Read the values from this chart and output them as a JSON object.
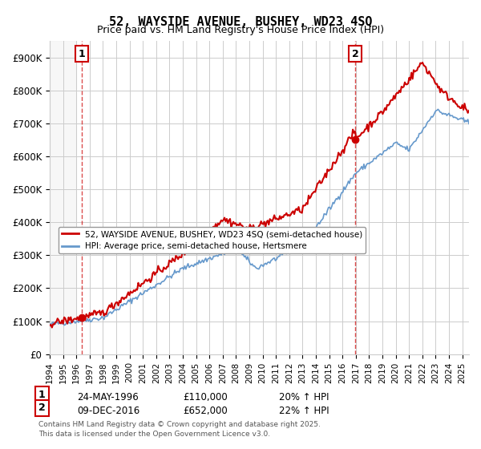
{
  "title": "52, WAYSIDE AVENUE, BUSHEY, WD23 4SQ",
  "subtitle": "Price paid vs. HM Land Registry's House Price Index (HPI)",
  "ylabel_ticks": [
    "£0",
    "£100K",
    "£200K",
    "£300K",
    "£400K",
    "£500K",
    "£600K",
    "£700K",
    "£800K",
    "£900K"
  ],
  "ytick_values": [
    0,
    100000,
    200000,
    300000,
    400000,
    500000,
    600000,
    700000,
    800000,
    900000
  ],
  "ylim": [
    0,
    950000
  ],
  "xlim_start": 1994.0,
  "xlim_end": 2025.5,
  "legend1": "52, WAYSIDE AVENUE, BUSHEY, WD23 4SQ (semi-detached house)",
  "legend2": "HPI: Average price, semi-detached house, Hertsmere",
  "point1_label": "1",
  "point1_date": "24-MAY-1996",
  "point1_price": "£110,000",
  "point1_hpi": "20% ↑ HPI",
  "point1_x": 1996.39,
  "point1_y": 110000,
  "point2_label": "2",
  "point2_date": "09-DEC-2016",
  "point2_price": "£652,000",
  "point2_hpi": "22% ↑ HPI",
  "point2_x": 2016.94,
  "point2_y": 652000,
  "red_color": "#cc0000",
  "blue_color": "#6699cc",
  "dashed_red_color": "#cc0000",
  "grid_color": "#cccccc",
  "bg_color": "#ffffff",
  "plot_bg_color": "#ffffff",
  "footnote": "Contains HM Land Registry data © Crown copyright and database right 2025.\nThis data is licensed under the Open Government Licence v3.0."
}
